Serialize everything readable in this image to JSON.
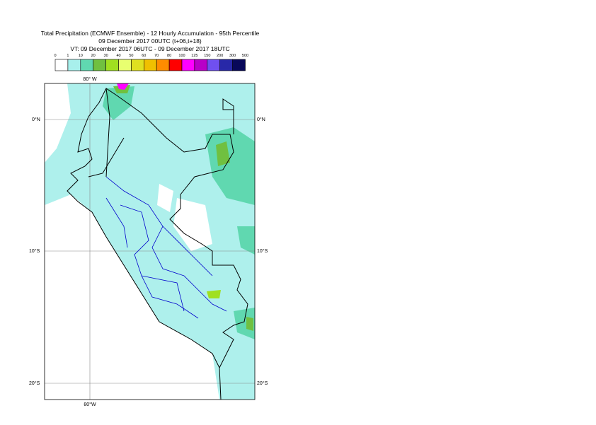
{
  "header": {
    "title": "Total Precipitation (ECMWF Ensemble) - 12 Hourly Accumulation - 95th Percentile",
    "subtitle": "09 December 2017 00UTC (t+06,t+18)",
    "valid_time": "VT: 09 December 2017 06UTC - 09 December 2017 18UTC"
  },
  "legend": {
    "labels": [
      "0",
      "1",
      "10",
      "20",
      "30",
      "40",
      "50",
      "60",
      "70",
      "80",
      "100",
      "125",
      "150",
      "200",
      "300",
      "500"
    ],
    "colors": [
      "#ffffff",
      "#a8f0ec",
      "#60d8b0",
      "#70c040",
      "#a0e020",
      "#e8ff70",
      "#e0e020",
      "#f0c000",
      "#ff8c00",
      "#ff0000",
      "#ff00ff",
      "#b800c8",
      "#7050f0",
      "#2828a8",
      "#08085a"
    ]
  },
  "map": {
    "lat_labels": [
      "0°N",
      "10°S",
      "20°S"
    ],
    "lon_label_top": "80° W",
    "lon_label_bottom": "80°W"
  }
}
